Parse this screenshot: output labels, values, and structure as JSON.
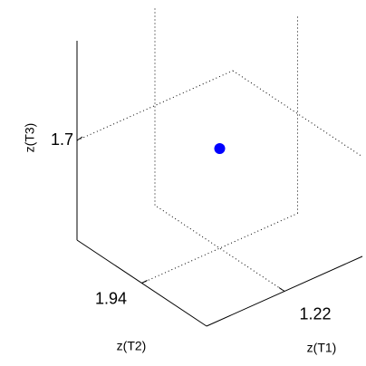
{
  "chart_data": {
    "type": "scatter3d",
    "xlabel": "z(T1)",
    "ylabel": "z(T2)",
    "zlabel": "z(T3)",
    "series": [
      {
        "color": "#0000ff",
        "x": [
          1.22
        ],
        "y": [
          1.94
        ],
        "z": [
          1.7
        ]
      }
    ],
    "xlim": [
      1.0,
      1.44
    ],
    "ylim": [
      1.72,
      2.16
    ],
    "zlim": [
      1.48,
      1.92
    ],
    "xticks": [
      1.22
    ],
    "yticks": [
      1.94
    ],
    "zticks": [
      1.7
    ],
    "grid": true
  }
}
